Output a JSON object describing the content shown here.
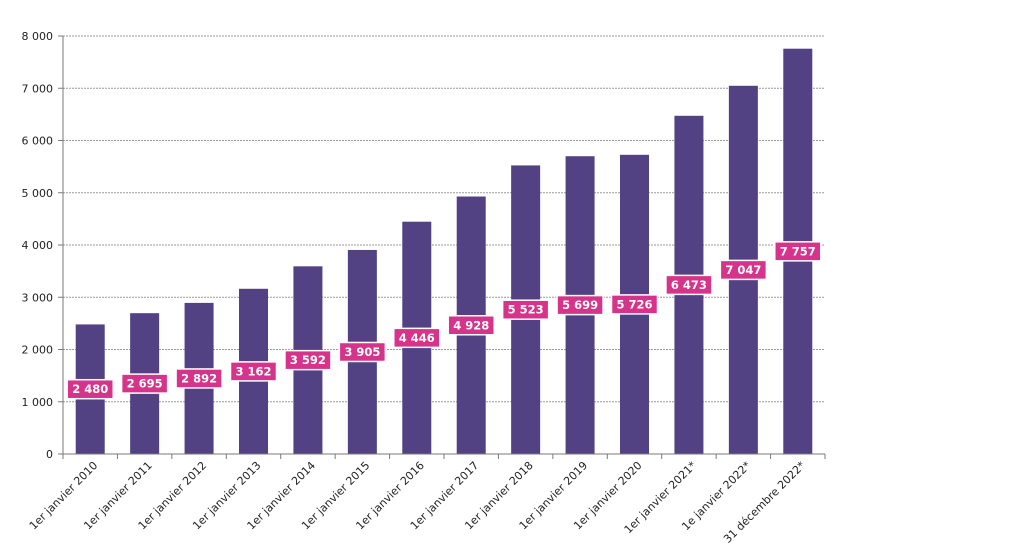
{
  "chart_data": {
    "type": "bar",
    "title": "",
    "xlabel": "",
    "ylabel": "",
    "ylim": [
      0,
      8000
    ],
    "yticks": [
      0,
      1000,
      2000,
      3000,
      4000,
      5000,
      6000,
      7000,
      8000
    ],
    "ytick_labels": [
      "0",
      "1 000",
      "2 000",
      "3 000",
      "4 000",
      "5 000",
      "6 000",
      "7 000",
      "8 000"
    ],
    "grid": true,
    "categories": [
      "1er janvier 2010",
      "1er janvier 2011",
      "1er janvier 2012",
      "1er janvier 2013",
      "1er janvier 2014",
      "1er janvier 2015",
      "1er janvier 2016",
      "1er janvier 2017",
      "1er janvier 2018",
      "1er janvier 2019",
      "1er janvier 2020",
      "1er janvier 2021*",
      "1e janvier 2022*",
      "31 décembre 2022*"
    ],
    "values": [
      2480,
      2695,
      2892,
      3162,
      3592,
      3905,
      4446,
      4928,
      5523,
      5699,
      5726,
      6473,
      7047,
      7757
    ],
    "value_labels": [
      "2 480",
      "2 695",
      "2 892",
      "3 162",
      "3 592",
      "3 905",
      "4 446",
      "4 928",
      "5 523",
      "5 699",
      "5 726",
      "6 473",
      "7 047",
      "7 757"
    ],
    "colors": {
      "bar": "#524283",
      "label_bg": "#d6338a",
      "label_text": "#ffffff",
      "grid": "#9a9a9a",
      "axis": "#7a7a7a"
    }
  }
}
